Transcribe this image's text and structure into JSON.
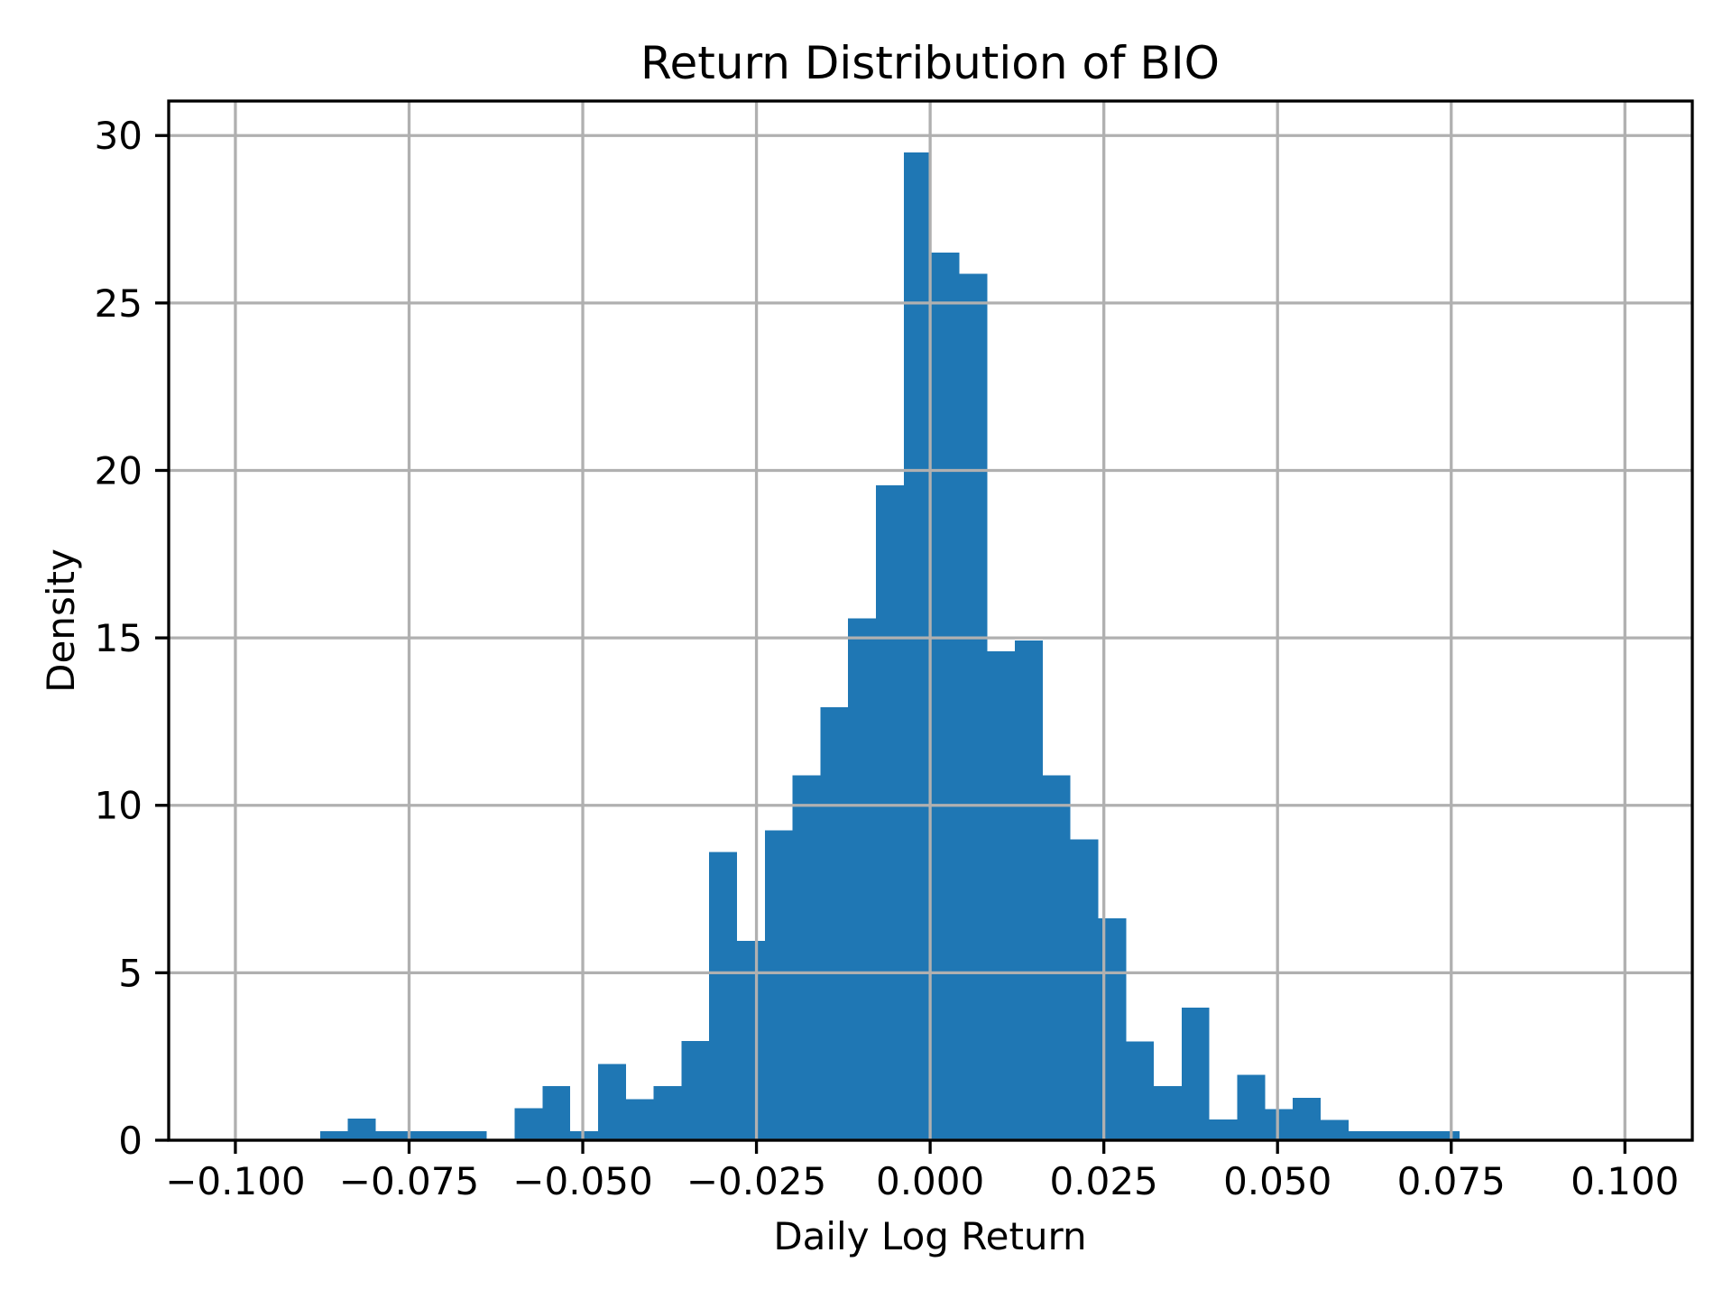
{
  "figure": {
    "background": "#ffffff",
    "plot_background": "#ffffff"
  },
  "chart_data": {
    "type": "bar",
    "subtype": "histogram",
    "title": "Return Distribution of BIO",
    "xlabel": "Daily Log Return",
    "ylabel": "Density",
    "bar_color": "#1f77b4",
    "grid": true,
    "grid_color": "#b0b0b0",
    "spine_color": "#000000",
    "legend_position": "none",
    "xlim": [
      -0.1096,
      0.1097
    ],
    "ylim": [
      0,
      31.03
    ],
    "bin_start": -0.0878,
    "bin_width": 0.004,
    "densities": [
      0.27,
      0.65,
      0.27,
      0.27,
      0.27,
      0.27,
      0,
      0.95,
      1.62,
      0.27,
      2.27,
      1.22,
      1.62,
      2.96,
      8.6,
      5.95,
      9.25,
      10.9,
      12.93,
      15.58,
      19.55,
      29.5,
      26.5,
      25.87,
      14.6,
      14.92,
      10.9,
      8.98,
      6.62,
      2.95,
      1.62,
      3.96,
      0.62,
      1.95,
      0.93,
      1.27,
      0.6,
      0.27,
      0.27,
      0.27,
      0.27
    ],
    "x_tick_values": [
      -0.1,
      -0.075,
      -0.05,
      -0.025,
      0.0,
      0.025,
      0.05,
      0.075,
      0.1
    ],
    "x_tick_labels": [
      "−0.100",
      "−0.075",
      "−0.050",
      "−0.025",
      "0.000",
      "0.025",
      "0.050",
      "0.075",
      "0.100"
    ],
    "y_tick_values": [
      0,
      5,
      10,
      15,
      20,
      25,
      30
    ],
    "y_tick_labels": [
      "0",
      "5",
      "10",
      "15",
      "20",
      "25",
      "30"
    ]
  }
}
